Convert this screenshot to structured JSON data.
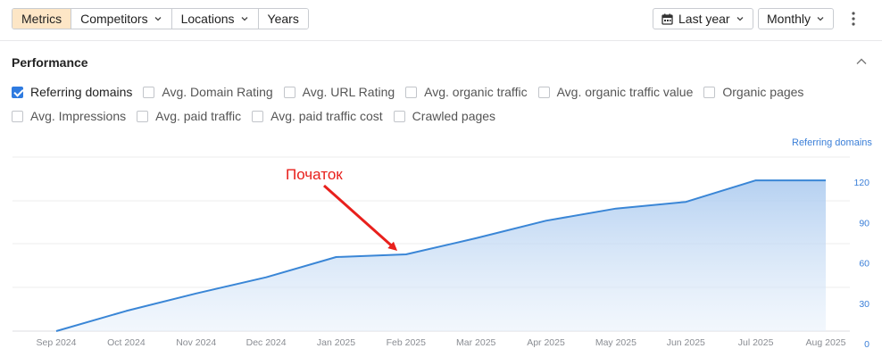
{
  "toolbar": {
    "segments": [
      {
        "label": "Metrics",
        "active": true
      },
      {
        "label": "Competitors",
        "dropdown": true
      },
      {
        "label": "Locations",
        "dropdown": true
      },
      {
        "label": "Years"
      }
    ],
    "date_range": {
      "label": "Last year",
      "icon": "calendar-icon"
    },
    "interval": {
      "label": "Monthly"
    },
    "more_icon": "kebab-menu-icon"
  },
  "section": {
    "title": "Performance",
    "collapse_icon": "chevron-up-icon"
  },
  "metrics_row1": [
    {
      "label": "Referring domains",
      "checked": true
    },
    {
      "label": "Avg. Domain Rating",
      "checked": false
    },
    {
      "label": "Avg. URL Rating",
      "checked": false
    },
    {
      "label": "Avg. organic traffic",
      "checked": false
    },
    {
      "label": "Avg. organic traffic value",
      "checked": false
    },
    {
      "label": "Organic pages",
      "checked": false
    }
  ],
  "metrics_row2": [
    {
      "label": "Avg. Impressions",
      "checked": false
    },
    {
      "label": "Avg. paid traffic",
      "checked": false
    },
    {
      "label": "Avg. paid traffic cost",
      "checked": false
    },
    {
      "label": "Crawled pages",
      "checked": false
    }
  ],
  "colors": {
    "accent": "#2f7be0",
    "line": "#3a86d6",
    "annotation": "#e8201c",
    "active_segment": "#fde6c6"
  },
  "chart_data": {
    "type": "area",
    "y_axis_title": "Referring domains",
    "y_ticks": [
      "0",
      "30",
      "60",
      "90",
      "120"
    ],
    "ylim": [
      0,
      120
    ],
    "categories": [
      "Sep 2024",
      "Oct 2024",
      "Nov 2024",
      "Dec 2024",
      "Jan 2025",
      "Feb 2025",
      "Mar 2025",
      "Apr 2025",
      "May 2025",
      "Jun 2025",
      "Jul 2025",
      "Aug 2025"
    ],
    "series": [
      {
        "values": [
          0,
          15,
          28,
          40,
          55,
          57,
          69,
          82,
          91,
          96,
          112,
          112
        ]
      }
    ],
    "grid": true,
    "annotation": {
      "text": "Початок",
      "category": "Feb 2025"
    }
  }
}
